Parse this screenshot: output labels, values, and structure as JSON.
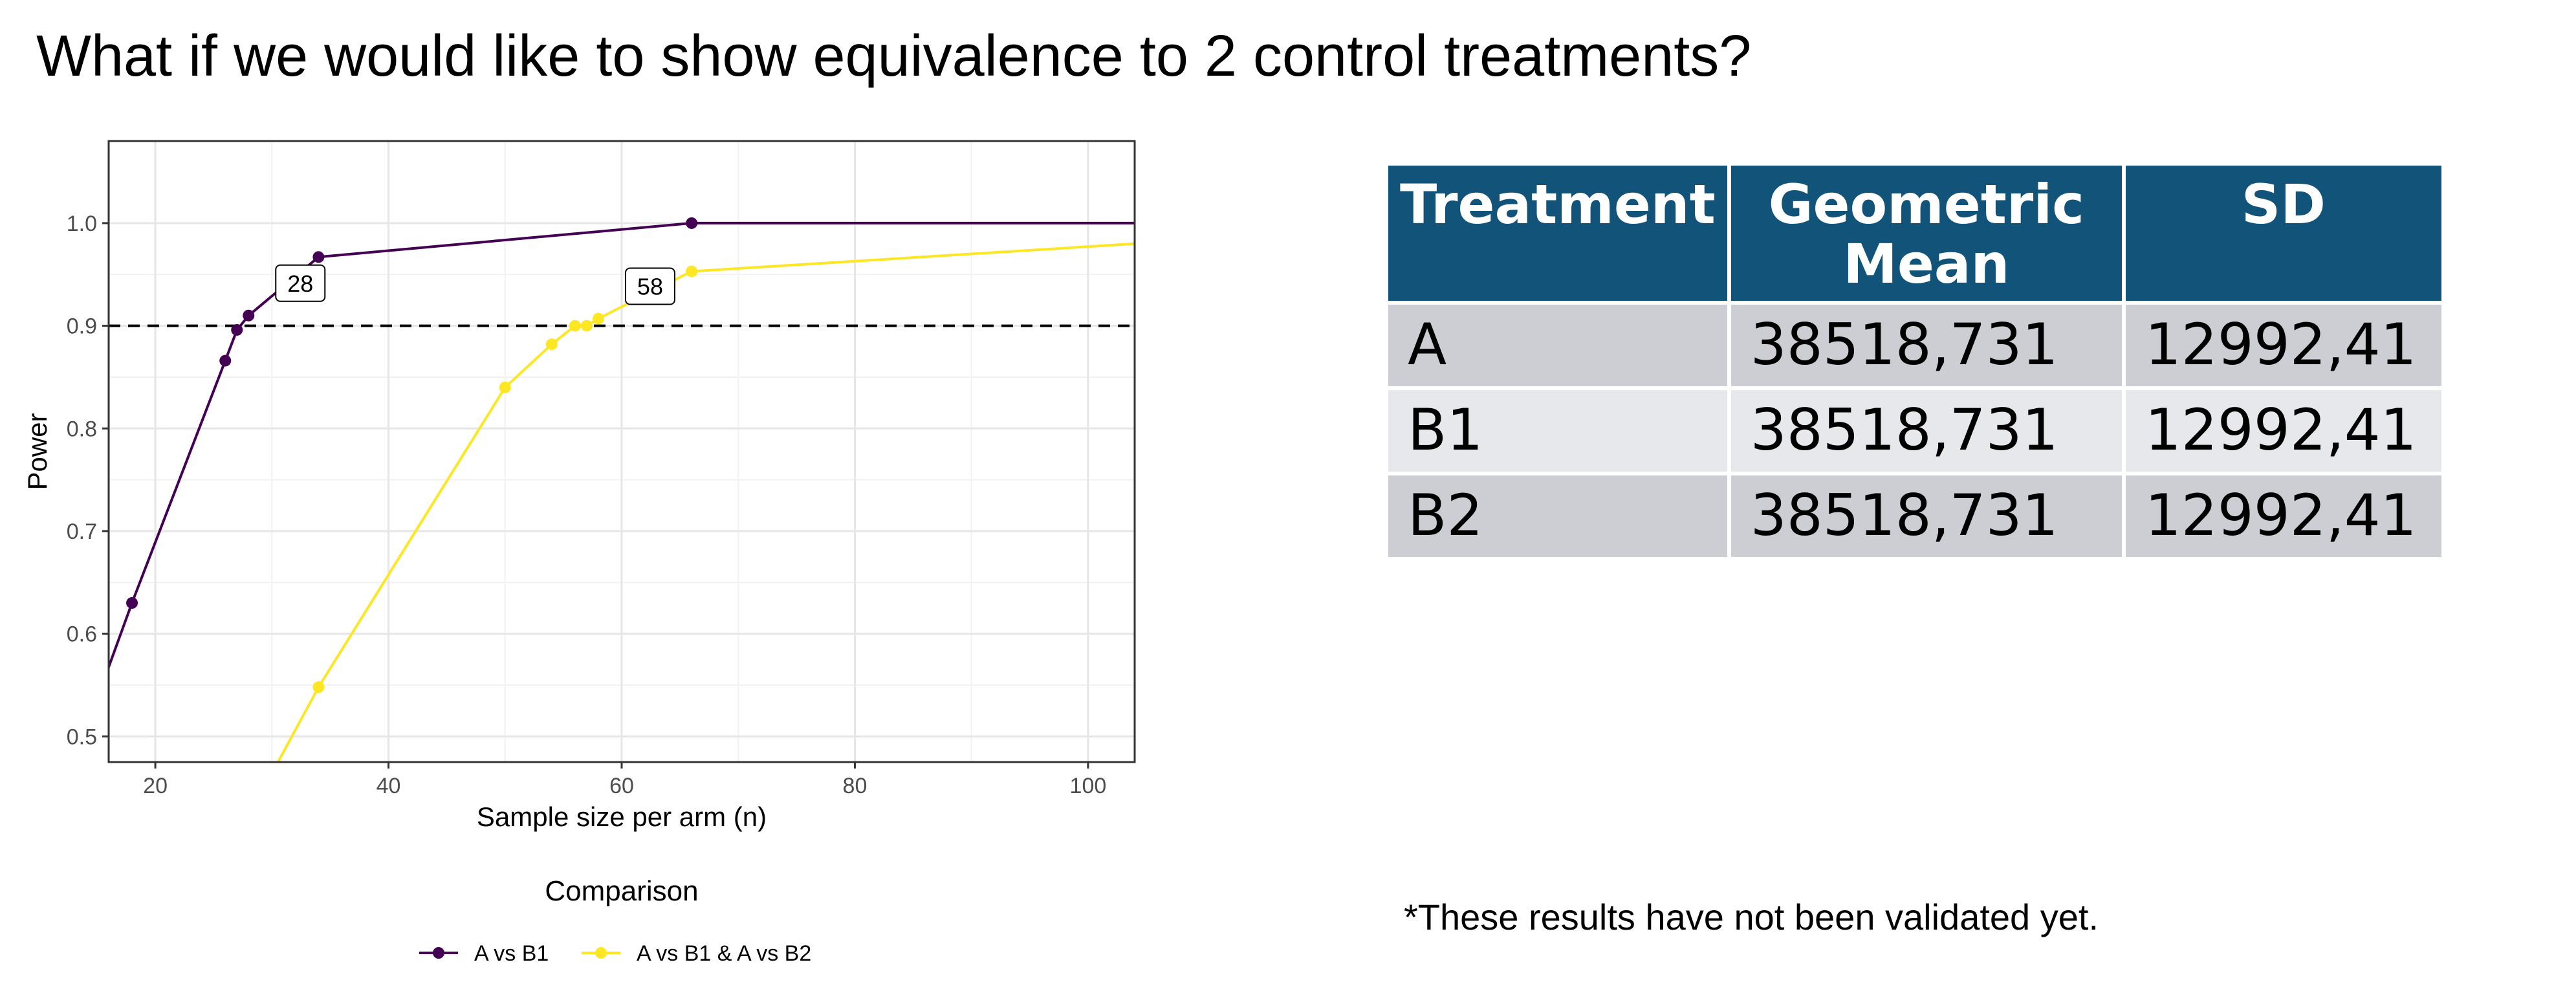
{
  "slide": {
    "title": "What if we would like to show equivalence to 2 control treatments?",
    "footnote": "*These results have not been validated yet."
  },
  "chart_data": {
    "type": "line",
    "xlabel": "Sample size per arm (n)",
    "ylabel": "Power",
    "xlim": [
      16,
      104
    ],
    "ylim": [
      0.475,
      1.08
    ],
    "x_ticks": [
      20,
      40,
      60,
      80,
      100
    ],
    "y_ticks": [
      0.5,
      0.6,
      0.7,
      0.8,
      0.9,
      1.0
    ],
    "x_tick_labels": [
      "20",
      "40",
      "60",
      "80",
      "100"
    ],
    "y_tick_labels": [
      "0.5",
      "0.6",
      "0.7",
      "0.8",
      "0.9",
      "1.0"
    ],
    "grid": true,
    "legend_title": "Comparison",
    "legend_position": "bottom",
    "reference_line": {
      "y": 0.9,
      "style": "dashed",
      "color": "#000000"
    },
    "series": [
      {
        "name": "A vs B1",
        "color": "#440154",
        "line": [
          [
            10,
            0.38
          ],
          [
            18,
            0.63
          ],
          [
            26,
            0.866
          ],
          [
            27,
            0.896
          ],
          [
            28,
            0.91
          ],
          [
            34,
            0.967
          ],
          [
            66,
            1.0
          ],
          [
            104,
            1.0
          ]
        ],
        "points": [
          [
            18,
            0.63
          ],
          [
            26,
            0.866
          ],
          [
            27,
            0.896
          ],
          [
            28,
            0.91
          ],
          [
            34,
            0.967
          ],
          [
            66,
            1.0
          ]
        ],
        "label": {
          "text": "28",
          "x": 28,
          "y": 0.91
        }
      },
      {
        "name": "A vs B1 & A vs B2",
        "color": "#fde725",
        "line": [
          [
            26,
            0.38
          ],
          [
            34,
            0.548
          ],
          [
            50,
            0.84
          ],
          [
            54,
            0.882
          ],
          [
            56,
            0.9
          ],
          [
            57,
            0.9
          ],
          [
            58,
            0.907
          ],
          [
            66,
            0.953
          ],
          [
            104,
            0.98
          ]
        ],
        "points": [
          [
            34,
            0.548
          ],
          [
            50,
            0.84
          ],
          [
            54,
            0.882
          ],
          [
            56,
            0.9
          ],
          [
            57,
            0.9
          ],
          [
            58,
            0.907
          ],
          [
            66,
            0.953
          ]
        ],
        "label": {
          "text": "58",
          "x": 58,
          "y": 0.907
        }
      }
    ]
  },
  "table": {
    "headers": [
      "Treatment",
      "Geometric Mean",
      "SD"
    ],
    "rows": [
      [
        "A",
        "38518,731",
        "12992,41"
      ],
      [
        "B1",
        "38518,731",
        "12992,41"
      ],
      [
        "B2",
        "38518,731",
        "12992,41"
      ]
    ]
  }
}
